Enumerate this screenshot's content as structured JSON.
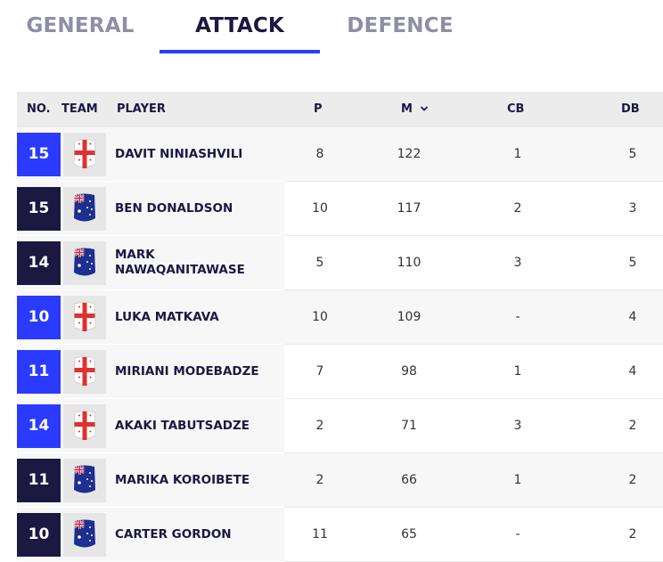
{
  "tabs": [
    {
      "label": "GENERAL",
      "active": false
    },
    {
      "label": "ATTACK",
      "active": true
    },
    {
      "label": "DEFENCE",
      "active": false
    }
  ],
  "colors": {
    "accent": "#2a3bff",
    "navy": "#1b1842",
    "inactive_tab": "#8e8ea4",
    "header_bg": "#ececec"
  },
  "table": {
    "headers": {
      "no": "NO.",
      "team": "TEAM",
      "player": "PLAYER",
      "p": "P",
      "m": "M",
      "cb": "CB",
      "db": "DB"
    },
    "sort_icon": "chevron-down-icon",
    "rows": [
      {
        "no": "15",
        "team": "georgia",
        "player": "DAVIT NINIASHVILI",
        "p": "8",
        "m": "122",
        "cb": "1",
        "db": "5"
      },
      {
        "no": "15",
        "team": "australia",
        "player": "BEN DONALDSON",
        "p": "10",
        "m": "117",
        "cb": "2",
        "db": "3"
      },
      {
        "no": "14",
        "team": "australia",
        "player": "MARK NAWAQANITAWASE",
        "p": "5",
        "m": "110",
        "cb": "3",
        "db": "5"
      },
      {
        "no": "10",
        "team": "georgia",
        "player": "LUKA MATKAVA",
        "p": "10",
        "m": "109",
        "cb": "-",
        "db": "4"
      },
      {
        "no": "11",
        "team": "georgia",
        "player": "MIRIANI MODEBADZE",
        "p": "7",
        "m": "98",
        "cb": "1",
        "db": "4"
      },
      {
        "no": "14",
        "team": "georgia",
        "player": "AKAKI TABUTSADZE",
        "p": "2",
        "m": "71",
        "cb": "3",
        "db": "2"
      },
      {
        "no": "11",
        "team": "australia",
        "player": "MARIKA KOROIBETE",
        "p": "2",
        "m": "66",
        "cb": "1",
        "db": "2"
      },
      {
        "no": "10",
        "team": "australia",
        "player": "CARTER GORDON",
        "p": "11",
        "m": "65",
        "cb": "-",
        "db": "2"
      }
    ]
  }
}
